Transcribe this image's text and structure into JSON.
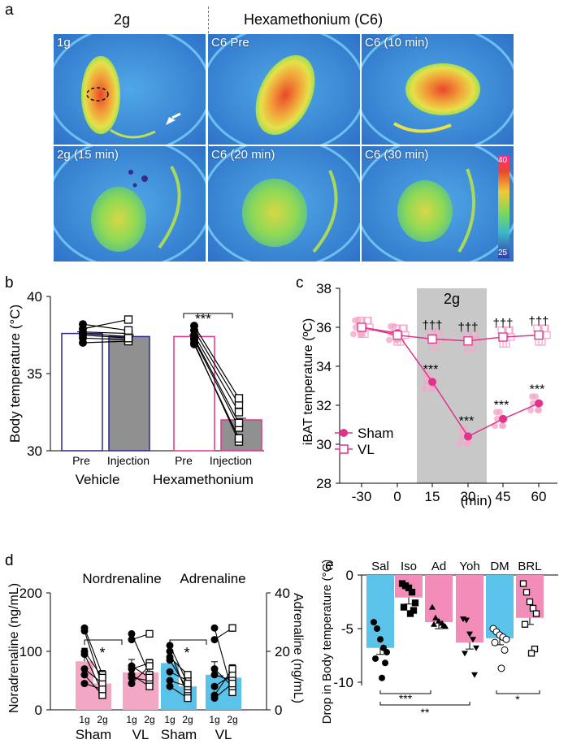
{
  "panel_a": {
    "label": "a",
    "header_left": "2g",
    "header_right": "Hexamethonium (C6)",
    "tiles": [
      "1g",
      "C6 Pre",
      "C6 (10 min)",
      "2g (15 min)",
      "C6 (20 min)",
      "C6 (30 min)"
    ],
    "colorbar_max": "40",
    "colorbar_min": "25",
    "colors": {
      "background": "#3a86d6",
      "mid": "#7ed957",
      "hot": "#e8482a"
    }
  },
  "panel_b": {
    "label": "b",
    "significance": "***",
    "group_labels": [
      "Vehicle",
      "Hexamethonium"
    ],
    "condition_labels": [
      "Pre",
      "Injection",
      "Pre",
      "Injection"
    ],
    "chart_data": {
      "type": "bar",
      "ylabel": "Body temperature (°C)",
      "ylim": [
        30,
        40
      ],
      "yticks": [
        "30",
        "35",
        "40"
      ],
      "categories": [
        "Vehicle Pre",
        "Vehicle Injection",
        "Hexamethonium Pre",
        "Hexamethonium Injection"
      ],
      "values": [
        37.6,
        37.4,
        37.4,
        32.0
      ],
      "pairs_vehicle": [
        [
          37.9,
          38.5
        ],
        [
          37.7,
          37.6
        ],
        [
          37.6,
          37.4
        ],
        [
          37.3,
          37.2
        ],
        [
          37.0,
          37.1
        ],
        [
          37.5,
          37.3
        ],
        [
          38.2,
          37.8
        ]
      ],
      "pairs_hexamethonium": [
        [
          37.2,
          31.5
        ],
        [
          37.5,
          32.5
        ],
        [
          37.0,
          30.6
        ],
        [
          37.8,
          33.0
        ],
        [
          38.1,
          33.4
        ],
        [
          37.3,
          31.8
        ],
        [
          36.9,
          30.8
        ]
      ]
    }
  },
  "panel_c": {
    "label": "c",
    "shade_label": "2g",
    "daggers": [
      "†††",
      "†††",
      "†††",
      "†††"
    ],
    "stars": [
      "***",
      "***",
      "***",
      "***"
    ],
    "legend": [
      "Sham",
      "VL"
    ],
    "colors": {
      "sham": "#e0338a",
      "vl": "#e0338a",
      "shade": "#c8c8c8"
    },
    "chart_data": {
      "type": "line",
      "xlabel": "(min)",
      "ylabel": "iBAT temperature (ºC)",
      "x": [
        -30,
        0,
        15,
        30,
        45,
        60
      ],
      "xticks": [
        "-30",
        "0",
        "15",
        "30",
        "45",
        "60"
      ],
      "ylim": [
        28,
        38
      ],
      "yticks": [
        "28",
        "30",
        "32",
        "34",
        "36",
        "38"
      ],
      "series": [
        {
          "name": "Sham",
          "values": [
            36.0,
            35.7,
            33.2,
            30.4,
            31.3,
            32.1
          ]
        },
        {
          "name": "VL",
          "values": [
            36.0,
            35.6,
            35.4,
            35.3,
            35.5,
            35.6
          ]
        }
      ]
    }
  },
  "panel_d": {
    "label": "d",
    "title_left": "Nordrenaline",
    "title_right": "Adrenaline",
    "sig_left": "*",
    "sig_right": "*",
    "tick_labels": [
      "1g",
      "2g",
      "1g",
      "2g",
      "1g",
      "2g",
      "1g",
      "2g"
    ],
    "group_labels": [
      "Sham",
      "VL",
      "Sham",
      "VL"
    ],
    "colors": {
      "nor": "#f2a7c4",
      "adr": "#5bc3ea"
    },
    "chart_data": [
      {
        "type": "bar",
        "ylabel": "Noradrenaline (ng/mL)",
        "ylim": [
          0,
          200
        ],
        "yticks": [
          "0",
          "100",
          "200"
        ],
        "categories": [
          "Sham 1g",
          "Sham 2g",
          "VL 1g",
          "VL 2g"
        ],
        "values": [
          83,
          45,
          64,
          64
        ],
        "pairs_sham": [
          [
            140,
            60
          ],
          [
            135,
            40
          ],
          [
            95,
            30
          ],
          [
            70,
            45
          ],
          [
            60,
            25
          ],
          [
            45,
            35
          ],
          [
            100,
            55
          ]
        ],
        "pairs_vl": [
          [
            130,
            60
          ],
          [
            120,
            130
          ],
          [
            70,
            80
          ],
          [
            55,
            50
          ],
          [
            45,
            75
          ],
          [
            60,
            40
          ],
          [
            75,
            55
          ]
        ]
      },
      {
        "type": "bar",
        "ylabel": "Adrenaline (ng/mL)",
        "ylim": [
          0,
          40
        ],
        "yticks": [
          "0",
          "20",
          "40"
        ],
        "categories": [
          "Sham 1g",
          "Sham 2g",
          "VL 1g",
          "VL 2g"
        ],
        "values": [
          16,
          8,
          12,
          11
        ],
        "pairs_sham": [
          [
            20,
            5
          ],
          [
            17,
            7
          ],
          [
            13,
            10
          ],
          [
            10,
            8
          ],
          [
            8,
            4
          ],
          [
            18,
            12
          ],
          [
            22,
            9
          ]
        ],
        "pairs_vl": [
          [
            28,
            6
          ],
          [
            24,
            28
          ],
          [
            14,
            8
          ],
          [
            8,
            12
          ],
          [
            5,
            14
          ],
          [
            12,
            10
          ],
          [
            4,
            9
          ]
        ]
      }
    ]
  },
  "panel_e": {
    "label": "e",
    "sig_brackets": [
      "***",
      "**",
      "*"
    ],
    "colors": {
      "blue": "#5bc3ea",
      "pink": "#f28dba"
    },
    "chart_data": {
      "type": "bar",
      "ylabel": "Drop in Body temperature (°C)",
      "ylim": [
        -10,
        0
      ],
      "yticks": [
        "0",
        "-5",
        "-10"
      ],
      "categories": [
        "Sal",
        "Iso",
        "Ad",
        "Yoh",
        "DM",
        "BRL"
      ],
      "values": [
        -6.8,
        -2.1,
        -4.4,
        -6.3,
        -5.9,
        -4.0
      ],
      "points": [
        [
          -4.4,
          -5.0,
          -6.0,
          -6.8,
          -7.2,
          -7.8,
          -8.2,
          -9.6
        ],
        [
          -0.8,
          -1.0,
          -1.2,
          -1.6,
          -2.6,
          -3.0,
          -3.3,
          -3.6
        ],
        [
          -3.0,
          -4.0,
          -4.3,
          -4.5,
          -4.8,
          -4.6,
          -4.7
        ],
        [
          -4.1,
          -4.2,
          -5.5,
          -6.0,
          -6.8,
          -7.3,
          -9.3
        ],
        [
          -5.0,
          -5.3,
          -5.6,
          -5.8,
          -6.0,
          -6.3,
          -7.0,
          -8.7
        ],
        [
          -0.8,
          -1.6,
          -2.5,
          -3.1,
          -3.6,
          -4.6,
          -6.9,
          -7.3
        ]
      ]
    }
  }
}
